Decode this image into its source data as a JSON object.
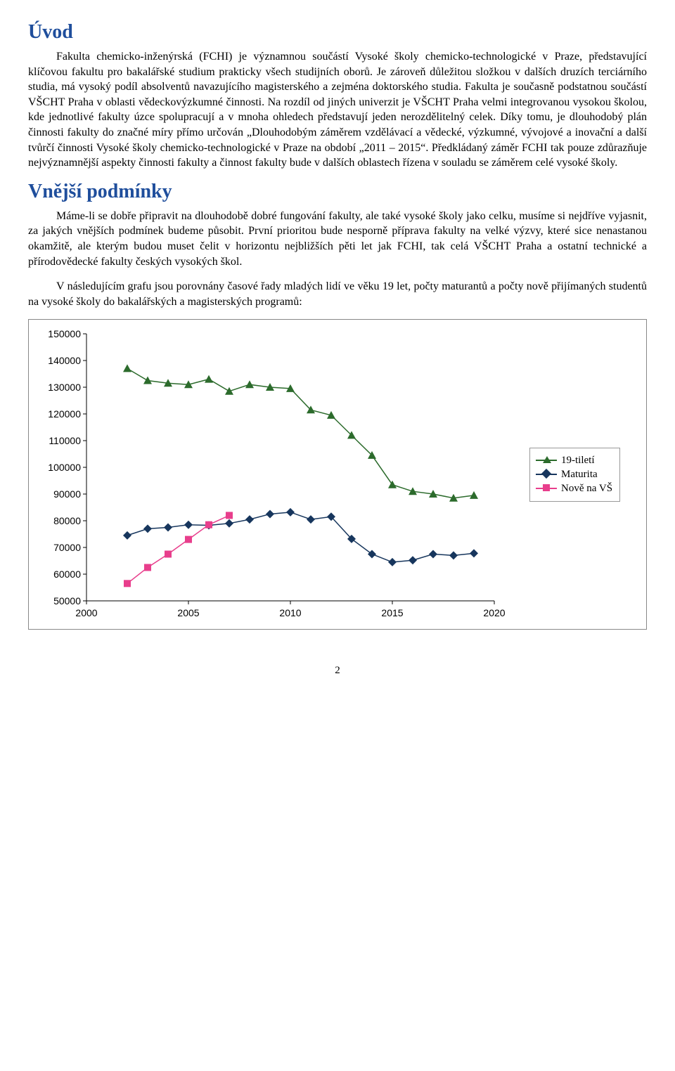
{
  "heading1": "Úvod",
  "para1": "Fakulta chemicko-inženýrská (FCHI) je významnou součástí Vysoké školy chemicko-technologické v Praze, představující klíčovou fakultu pro bakalářské studium prakticky všech studijních oborů. Je zároveň důležitou složkou v dalších druzích terciárního studia, má vysoký podíl absolventů navazujícího magisterského a zejména doktorského studia. Fakulta je současně podstatnou součástí VŠCHT Praha v oblasti vědeckovýzkumné činnosti. Na rozdíl od jiných univerzit je VŠCHT Praha velmi integrovanou vysokou školou, kde jednotlivé fakulty úzce spolupracují a v mnoha ohledech představují jeden nerozdělitelný celek. Díky tomu, je dlouhodobý plán činnosti fakulty do značné míry přímo určován „Dlouhodobým záměrem vzdělávací a vědecké, výzkumné, vývojové a inovační a další tvůrčí činnosti Vysoké školy chemicko-technologické v Praze na období „2011 – 2015“. Předkládaný záměr FCHI tak pouze zdůrazňuje nejvýznamnější aspekty činnosti fakulty a činnost fakulty bude v dalších oblastech řízena v souladu se záměrem celé vysoké školy.",
  "heading2": "Vnější podmínky",
  "para2": "Máme-li se dobře připravit na dlouhodobě dobré fungování fakulty, ale také vysoké školy jako celku, musíme si nejdříve vyjasnit, za jakých vnějších podmínek budeme působit. První prioritou bude nesporně příprava fakulty na velké výzvy, které sice nenastanou okamžitě, ale kterým budou muset čelit v horizontu nejbližších pěti let jak FCHI, tak celá VŠCHT Praha a ostatní technické a přírodovědecké fakulty českých vysokých škol.",
  "para3": "V následujícím grafu jsou porovnány časové řady mladých lidí ve věku 19 let, počty maturantů a počty nově přijímaných studentů na vysoké školy do bakalářských a magisterských programů:",
  "chart": {
    "type": "line-scatter",
    "background_color": "#ffffff",
    "grid_color": "#000000",
    "axis_color": "#000000",
    "tick_fontsize": 14,
    "ylim": [
      50000,
      150000
    ],
    "ytick_step": 10000,
    "yticks": [
      "50000",
      "60000",
      "70000",
      "80000",
      "90000",
      "100000",
      "110000",
      "120000",
      "130000",
      "140000",
      "150000"
    ],
    "xlim": [
      2000,
      2020
    ],
    "xtick_step": 5,
    "xticks": [
      "2000",
      "2005",
      "2010",
      "2015",
      "2020"
    ],
    "series": [
      {
        "name": "19-tiletí",
        "color": "#2c6b2c",
        "marker": "triangle",
        "line_width": 1.5,
        "x": [
          2002,
          2003,
          2004,
          2005,
          2006,
          2007,
          2008,
          2009,
          2010,
          2011,
          2012,
          2013,
          2014,
          2015,
          2016,
          2017,
          2018,
          2019
        ],
        "y": [
          137000,
          132500,
          131500,
          131000,
          133000,
          128500,
          131000,
          130000,
          129500,
          121500,
          119500,
          112000,
          104500,
          93500,
          91000,
          90000,
          88500,
          89500
        ]
      },
      {
        "name": "Maturita",
        "color": "#17365d",
        "marker": "diamond",
        "line_width": 1.5,
        "x": [
          2002,
          2003,
          2004,
          2005,
          2006,
          2007,
          2008,
          2009,
          2010,
          2011,
          2012,
          2013,
          2014,
          2015,
          2016,
          2017,
          2018,
          2019
        ],
        "y": [
          74500,
          77000,
          77500,
          78500,
          78300,
          79000,
          80500,
          82500,
          83200,
          80500,
          81500,
          73200,
          67500,
          64500,
          65200,
          67500,
          67000,
          67800
        ]
      },
      {
        "name": "Nově na VŠ",
        "color": "#e83e8c",
        "marker": "square",
        "line_width": 1.5,
        "x": [
          2002,
          2003,
          2004,
          2005,
          2006,
          2007
        ],
        "y": [
          56500,
          62500,
          67500,
          73000,
          78500,
          82000
        ]
      }
    ],
    "legend": [
      "19-tiletí",
      "Maturita",
      "Nově na VŠ"
    ]
  },
  "page_number": "2"
}
